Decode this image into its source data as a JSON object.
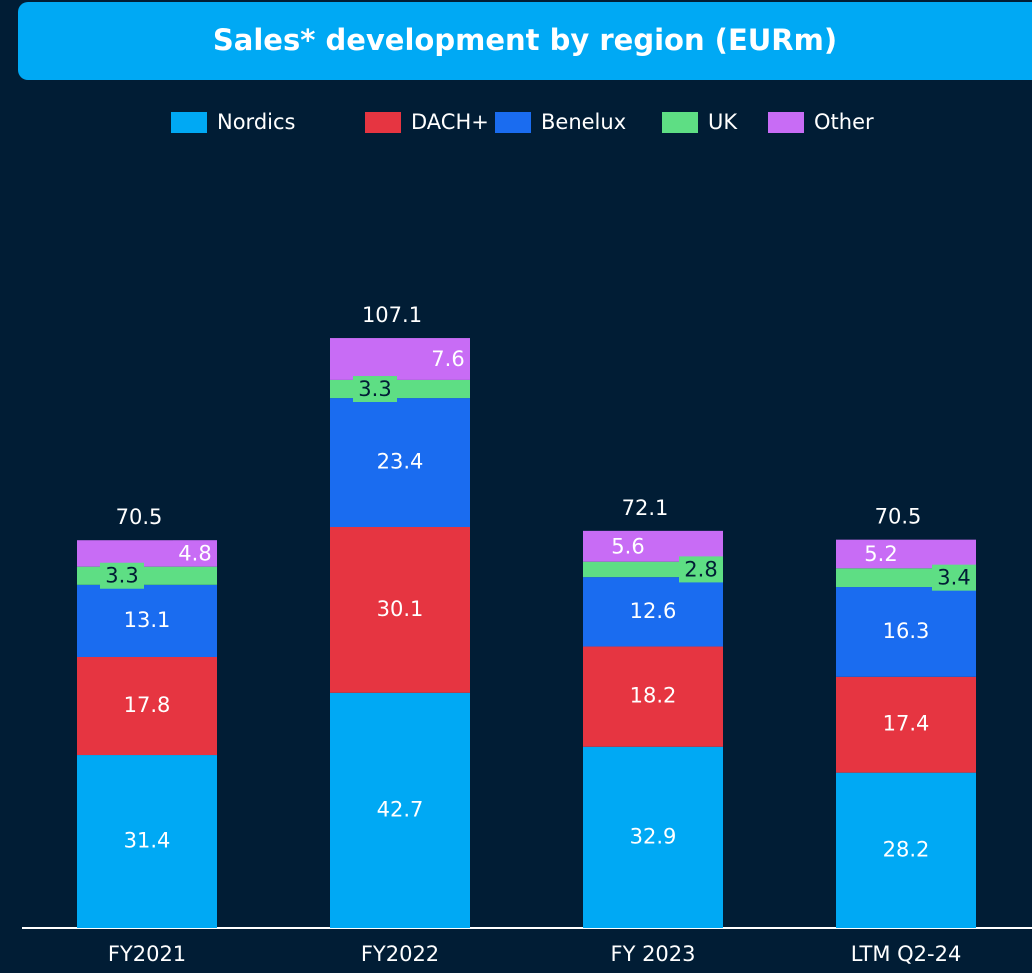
{
  "chart_data": {
    "type": "stacked_bar",
    "title": "Sales* development by region (EURm)",
    "categories": [
      "FY2021",
      "FY2022",
      "FY 2023",
      "LTM Q2-24"
    ],
    "series": [
      {
        "name": "Nordics",
        "color": "#00a9f4",
        "values": [
          31.4,
          42.7,
          32.9,
          28.2
        ]
      },
      {
        "name": "DACH+",
        "color": "#e63541",
        "values": [
          17.8,
          30.1,
          18.2,
          17.4
        ]
      },
      {
        "name": "Benelux",
        "color": "#1a6cf0",
        "values": [
          13.1,
          23.4,
          12.6,
          16.3
        ]
      },
      {
        "name": "UK",
        "color": "#5ede84",
        "values": [
          3.3,
          3.3,
          2.8,
          3.4
        ]
      },
      {
        "name": "Other",
        "color": "#c86cf5",
        "values": [
          4.8,
          7.6,
          5.6,
          5.2
        ]
      }
    ],
    "totals": [
      70.5,
      107.1,
      72.1,
      70.5
    ],
    "ylim": [
      0,
      120
    ],
    "legend": "top"
  }
}
